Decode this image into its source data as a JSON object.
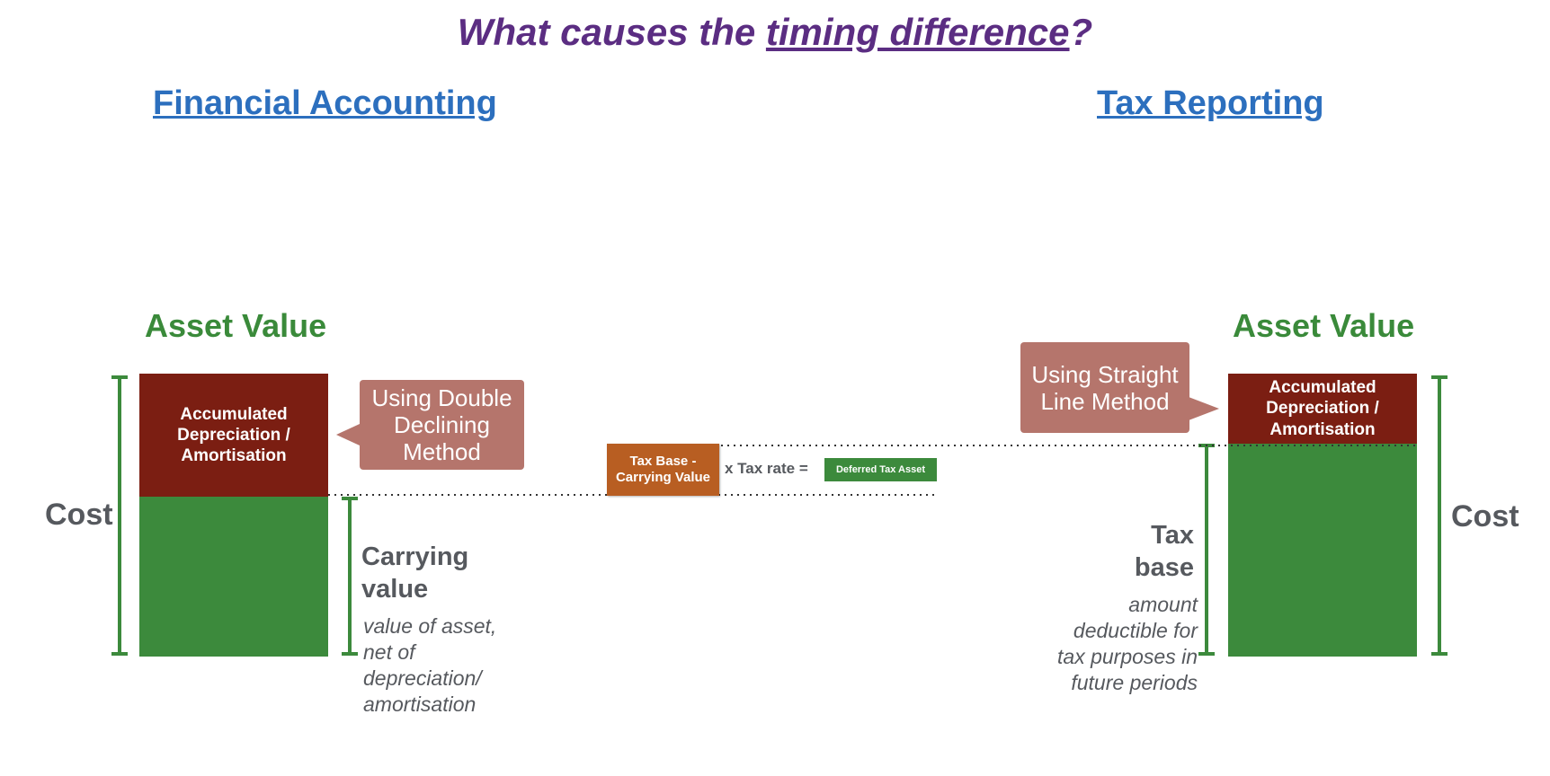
{
  "title": {
    "prefix": "What causes the ",
    "underlined": "timing difference",
    "suffix": "?"
  },
  "left": {
    "heading": "Financial Accounting",
    "asset_value": "Asset Value",
    "dep_block": [
      "Accumulated",
      "Depreciation /",
      "Amortisation"
    ],
    "callout": [
      "Using Double",
      "Declining",
      "Method"
    ],
    "cost_label": "Cost",
    "carrying_label": [
      "Carrying",
      "value"
    ],
    "carrying_note": [
      "value of asset,",
      "net of",
      "depreciation/",
      "amortisation"
    ]
  },
  "right": {
    "heading": "Tax Reporting",
    "asset_value": "Asset Value",
    "dep_block": [
      "Accumulated",
      "Depreciation /",
      "Amortisation"
    ],
    "callout": [
      "Using Straight",
      "Line Method"
    ],
    "cost_label": "Cost",
    "tax_base_label": [
      "Tax",
      "base"
    ],
    "tax_base_note": [
      "amount",
      "deductible for",
      "tax purposes in",
      "future periods"
    ]
  },
  "formula": {
    "box_lines": [
      "Tax Base -",
      "Carrying Value"
    ],
    "operator": "x Tax rate  =",
    "result": "Deferred Tax Asset"
  },
  "colors": {
    "title": "#5b2d82",
    "heading": "#2c6fbe",
    "asset_value": "#3a8a3a",
    "depreciation": "#7b1e12",
    "asset_green": "#3c8a3c",
    "callout": "#b5756c",
    "formula_box": "#b85e22",
    "label_gray": "#56595e"
  }
}
